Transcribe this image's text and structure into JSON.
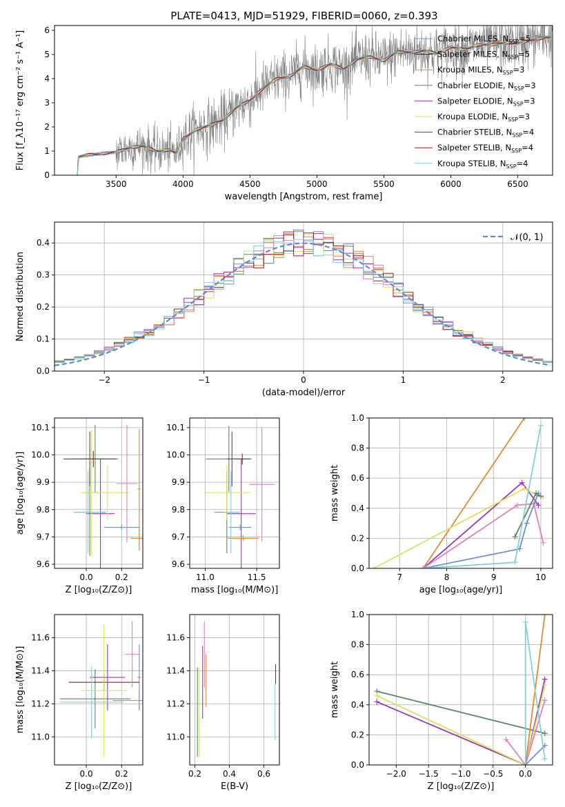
{
  "figure": {
    "title": "PLATE=0413, MJD=51929, FIBERID=0060, z=0.393"
  },
  "legend_entries": [
    {
      "name": "Chabrier MILES",
      "nssp": "5",
      "color": "#6c8fd8"
    },
    {
      "name": "Salpeter MILES",
      "nssp": "5",
      "color": "#1f1f1f"
    },
    {
      "name": "Kroupa MILES",
      "nssp": "3",
      "color": "#e08a2e"
    },
    {
      "name": "Chabrier ELODIE",
      "nssp": "3",
      "color": "#5b8466"
    },
    {
      "name": "Salpeter ELODIE",
      "nssp": "3",
      "color": "#9b34b0"
    },
    {
      "name": "Kroupa ELODIE",
      "nssp": "3",
      "color": "#dbe05a"
    },
    {
      "name": "Chabrier STELIB",
      "nssp": "4",
      "color": "#4a4a4a"
    },
    {
      "name": "Salpeter STELIB",
      "nssp": "4",
      "color": "#a01818"
    },
    {
      "name": "Kroupa STELIB",
      "nssp": "4",
      "color": "#7fd1d6"
    }
  ],
  "chart_data": [
    {
      "id": "spectrum",
      "type": "line",
      "xlabel": "wavelength [Angstrom, rest frame]",
      "ylabel": "Flux [f_λ10⁻¹⁷ erg cm⁻² s⁻¹ A⁻¹]",
      "xlim": [
        3040,
        6760
      ],
      "ylim": [
        0,
        6.2
      ],
      "xticks": [
        3500,
        4000,
        4500,
        5000,
        5500,
        6000,
        6500
      ],
      "yticks": [
        0,
        1,
        2,
        3,
        4,
        5,
        6
      ],
      "grid": false,
      "legend": "top-right",
      "continuum": [
        [
          3210,
          0.0
        ],
        [
          3215,
          0.75
        ],
        [
          3300,
          0.85
        ],
        [
          3400,
          0.9
        ],
        [
          3500,
          0.95
        ],
        [
          3600,
          1.15
        ],
        [
          3700,
          1.2
        ],
        [
          3800,
          1.0
        ],
        [
          3900,
          1.05
        ],
        [
          3950,
          0.9
        ],
        [
          4000,
          1.5
        ],
        [
          4100,
          1.9
        ],
        [
          4200,
          2.05
        ],
        [
          4300,
          2.3
        ],
        [
          4400,
          2.8
        ],
        [
          4500,
          3.1
        ],
        [
          4600,
          3.6
        ],
        [
          4700,
          4.0
        ],
        [
          4800,
          4.1
        ],
        [
          4900,
          4.5
        ],
        [
          5000,
          4.35
        ],
        [
          5100,
          4.6
        ],
        [
          5200,
          4.4
        ],
        [
          5300,
          4.8
        ],
        [
          5400,
          4.9
        ],
        [
          5500,
          4.75
        ],
        [
          5600,
          5.1
        ],
        [
          5700,
          5.1
        ],
        [
          5800,
          5.15
        ],
        [
          5900,
          5.05
        ],
        [
          6000,
          5.3
        ],
        [
          6100,
          5.2
        ],
        [
          6200,
          5.4
        ],
        [
          6300,
          5.4
        ],
        [
          6400,
          5.5
        ],
        [
          6500,
          5.45
        ],
        [
          6600,
          5.6
        ],
        [
          6700,
          5.7
        ]
      ],
      "data_color": "#808080"
    },
    {
      "id": "residuals",
      "type": "line",
      "xlabel": "(data-model)/error",
      "ylabel": "Normed distribution",
      "xlim": [
        -2.5,
        2.5
      ],
      "ylim": [
        0,
        0.465
      ],
      "xticks": [
        -2,
        -1,
        0,
        1,
        2
      ],
      "yticks": [
        0.0,
        0.1,
        0.2,
        0.3,
        0.4
      ],
      "grid": true,
      "legend": "top-right",
      "legend_label": "𝒩(0, 1)",
      "gaussian": {
        "mean": 0,
        "sigma": 1,
        "color": "#5b88d8"
      },
      "hist_bin_width": 0.1,
      "hist_colors": [
        "#6c8fd8",
        "#e08a2e",
        "#5b8466",
        "#9b34b0",
        "#dbe05a",
        "#e07fb8",
        "#a01818",
        "#7fd1d6"
      ]
    },
    {
      "id": "age-vs-Z",
      "type": "scatter",
      "xlabel": "Z [log₁₀(Z/Z⊙)]",
      "ylabel": "age  [log₁₀(age/yr)]",
      "xlim": [
        -0.18,
        0.32
      ],
      "ylim": [
        9.585,
        10.135
      ],
      "xticks": [
        0.0,
        0.2
      ],
      "yticks": [
        9.6,
        9.7,
        9.8,
        9.9,
        10.0,
        10.1
      ],
      "grid": true,
      "points": [
        {
          "x": 0.05,
          "y": 9.985,
          "xerr": 0.13,
          "yerr": 0.125,
          "color": "#5b8466"
        },
        {
          "x": 0.04,
          "y": 9.985,
          "xerr": 0.07,
          "yerr": 0.03,
          "color": "#a01818"
        },
        {
          "x": 0.02,
          "y": 9.79,
          "xerr": 0.09,
          "yerr": 0.16,
          "color": "#5b8466"
        },
        {
          "x": 0.08,
          "y": 9.785,
          "xerr": 0.08,
          "yerr": 0.2,
          "color": "#9b34b0"
        },
        {
          "x": 0.12,
          "y": 9.862,
          "xerr": 0.12,
          "yerr": 0.1,
          "color": "#dbe05a"
        },
        {
          "x": 0.03,
          "y": 9.862,
          "xerr": 0.06,
          "yerr": 0.23,
          "color": "#dbe05a"
        },
        {
          "x": 0.23,
          "y": 9.895,
          "xerr": 0.06,
          "yerr": 0.215,
          "color": "#e07fb8"
        },
        {
          "x": 0.3,
          "y": 9.695,
          "xerr": 0.05,
          "yerr": 0.045,
          "color": "#e08a2e"
        },
        {
          "x": 0.3,
          "y": 9.875,
          "xerr": 0.01,
          "yerr": 0.22,
          "color": "#e08a2e"
        },
        {
          "x": 0.2,
          "y": 9.735,
          "xerr": 0.1,
          "yerr": 0.01,
          "color": "#6c8fd8"
        },
        {
          "x": 0.01,
          "y": 9.79,
          "xerr": 0.08,
          "yerr": 0.15,
          "color": "#7fd1d6"
        },
        {
          "x": 0.02,
          "y": 9.985,
          "xerr": 0.15,
          "yerr": 0.1,
          "color": "#4a4a4a"
        }
      ]
    },
    {
      "id": "age-vs-mass",
      "type": "scatter",
      "xlabel": "mass [log₁₀(M/M⊙)]",
      "ylabel": "",
      "xlim": [
        10.85,
        11.72
      ],
      "ylim": [
        9.585,
        10.135
      ],
      "xticks": [
        11.0,
        11.5
      ],
      "yticks": [
        9.6,
        9.7,
        9.8,
        9.9,
        10.0,
        10.1
      ],
      "grid": true,
      "points": [
        {
          "x": 11.23,
          "y": 9.985,
          "xerr": 0.22,
          "yerr": 0.12,
          "color": "#5b8466"
        },
        {
          "x": 11.36,
          "y": 9.985,
          "xerr": 0.08,
          "yerr": 0.02,
          "color": "#a01818"
        },
        {
          "x": 11.21,
          "y": 9.79,
          "xerr": 0.12,
          "yerr": 0.15,
          "color": "#5b8466"
        },
        {
          "x": 11.35,
          "y": 9.785,
          "xerr": 0.14,
          "yerr": 0.2,
          "color": "#9b34b0"
        },
        {
          "x": 11.21,
          "y": 9.862,
          "xerr": 0.22,
          "yerr": 0.1,
          "color": "#dbe05a"
        },
        {
          "x": 11.55,
          "y": 9.892,
          "xerr": 0.12,
          "yerr": 0.21,
          "color": "#e07fb8"
        },
        {
          "x": 11.37,
          "y": 9.695,
          "xerr": 0.15,
          "yerr": 0.01,
          "color": "#e08a2e"
        },
        {
          "x": 11.34,
          "y": 9.735,
          "xerr": 0.11,
          "yerr": 0.01,
          "color": "#6c8fd8"
        },
        {
          "x": 11.25,
          "y": 9.79,
          "xerr": 0.07,
          "yerr": 0.15,
          "color": "#7fd1d6"
        },
        {
          "x": 11.26,
          "y": 9.985,
          "xerr": 0.05,
          "yerr": 0.1,
          "color": "#4a4a4a"
        }
      ]
    },
    {
      "id": "weight-vs-age",
      "type": "line",
      "xlabel": "age  [log₁₀(age/yr)]",
      "ylabel": "mass weight",
      "xlim": [
        6.35,
        10.25
      ],
      "ylim": [
        0,
        1
      ],
      "xticks": [
        7,
        8,
        9,
        10
      ],
      "yticks": [
        0.0,
        0.2,
        0.4,
        0.6,
        0.8,
        1.0
      ],
      "grid": true,
      "series": [
        {
          "color": "#e08a2e",
          "points": [
            [
              7.5,
              0.0
            ],
            [
              9.65,
              1.0
            ]
          ]
        },
        {
          "color": "#9b34b0",
          "points": [
            [
              7.5,
              0.0
            ],
            [
              9.6,
              0.57
            ],
            [
              9.95,
              0.42
            ]
          ]
        },
        {
          "color": "#dbe05a",
          "points": [
            [
              6.45,
              0.0
            ],
            [
              9.65,
              0.53
            ],
            [
              10.05,
              0.47
            ]
          ]
        },
        {
          "color": "#e07fb8",
          "points": [
            [
              7.5,
              0.0
            ],
            [
              9.5,
              0.42
            ],
            [
              9.85,
              0.43
            ],
            [
              10.05,
              0.17
            ]
          ]
        },
        {
          "color": "#6c8fd8",
          "points": [
            [
              7.5,
              0.0
            ],
            [
              9.55,
              0.13
            ],
            [
              9.7,
              0.3
            ],
            [
              9.95,
              0.5
            ]
          ]
        },
        {
          "color": "#5b8466",
          "points": [
            [
              9.45,
              0.21
            ],
            [
              9.9,
              0.5
            ],
            [
              10.0,
              0.48
            ]
          ]
        },
        {
          "color": "#7fd1d6",
          "points": [
            [
              7.5,
              0.0
            ],
            [
              9.45,
              0.04
            ],
            [
              10.0,
              0.95
            ]
          ]
        }
      ]
    },
    {
      "id": "mass-vs-Z",
      "type": "scatter",
      "xlabel": "Z [log₁₀(Z/Z⊙)]",
      "ylabel": "mass [log₁₀(M/M⊙)]",
      "xlim": [
        -0.18,
        0.32
      ],
      "ylim": [
        10.83,
        11.74
      ],
      "xticks": [
        0.0,
        0.2
      ],
      "yticks": [
        11.0,
        11.2,
        11.4,
        11.6
      ],
      "grid": true,
      "points": [
        {
          "x": 0.05,
          "y": 11.23,
          "xerr": 0.2,
          "yerr": 0.18,
          "color": "#5b8466"
        },
        {
          "x": 0.1,
          "y": 11.33,
          "xerr": 0.2,
          "yerr": 0.05,
          "color": "#a01818"
        },
        {
          "x": 0.12,
          "y": 11.36,
          "xerr": 0.1,
          "yerr": 0.2,
          "color": "#9b34b0"
        },
        {
          "x": 0.1,
          "y": 11.28,
          "xerr": 0.13,
          "yerr": 0.4,
          "color": "#dbe05a"
        },
        {
          "x": 0.26,
          "y": 11.5,
          "xerr": 0.04,
          "yerr": 0.2,
          "color": "#e07fb8"
        },
        {
          "x": 0.3,
          "y": 11.22,
          "xerr": 0.15,
          "yerr": 0.05,
          "color": "#e08a2e"
        },
        {
          "x": 0.3,
          "y": 11.36,
          "xerr": 0.01,
          "yerr": 0.2,
          "color": "#6c8fd8"
        },
        {
          "x": 0.03,
          "y": 11.21,
          "xerr": 0.18,
          "yerr": 0.22,
          "color": "#7fd1d6"
        }
      ]
    },
    {
      "id": "mass-vs-EBV",
      "type": "scatter",
      "xlabel": "E(B-V)",
      "ylabel": "",
      "xlim": [
        0.17,
        0.69
      ],
      "ylim": [
        10.83,
        11.74
      ],
      "xticks": [
        0.2,
        0.4,
        0.6
      ],
      "yticks": [
        11.0,
        11.2,
        11.4,
        11.6
      ],
      "grid": true,
      "points": [
        {
          "x": 0.215,
          "y": 11.15,
          "xerr": 0.0,
          "yerr": 0.27,
          "color": "#5b8466"
        },
        {
          "x": 0.225,
          "y": 11.15,
          "xerr": 0.0,
          "yerr": 0.27,
          "color": "#dbe05a"
        },
        {
          "x": 0.245,
          "y": 11.33,
          "xerr": 0.0,
          "yerr": 0.22,
          "color": "#9b34b0"
        },
        {
          "x": 0.255,
          "y": 11.5,
          "xerr": 0.0,
          "yerr": 0.2,
          "color": "#e07fb8"
        },
        {
          "x": 0.265,
          "y": 11.34,
          "xerr": 0.0,
          "yerr": 0.16,
          "color": "#e08a2e"
        },
        {
          "x": 0.665,
          "y": 11.15,
          "xerr": 0.0,
          "yerr": 0.17,
          "color": "#7fd1d6"
        },
        {
          "x": 0.668,
          "y": 11.38,
          "xerr": 0.0,
          "yerr": 0.06,
          "color": "#a01818"
        }
      ]
    },
    {
      "id": "weight-vs-Z",
      "type": "line",
      "xlabel": "Z [log₁₀(Z/Z⊙)]",
      "ylabel": "mass weight",
      "xlim": [
        -2.42,
        0.42
      ],
      "ylim": [
        0,
        1
      ],
      "xticks": [
        -2.0,
        -1.5,
        -1.0,
        -0.5,
        0.0
      ],
      "yticks": [
        0.0,
        0.2,
        0.4,
        0.6,
        0.8,
        1.0
      ],
      "grid": true,
      "series": [
        {
          "color": "#5b8466",
          "points": [
            [
              -2.3,
              0.49
            ],
            [
              0.3,
              0.21
            ]
          ]
        },
        {
          "color": "#9b34b0",
          "points": [
            [
              -2.3,
              0.42
            ],
            [
              0.0,
              0.0
            ],
            [
              0.3,
              0.57
            ]
          ]
        },
        {
          "color": "#dbe05a",
          "points": [
            [
              -2.3,
              0.46
            ],
            [
              0.0,
              0.0
            ],
            [
              0.3,
              0.53
            ]
          ]
        },
        {
          "color": "#e07fb8",
          "points": [
            [
              -0.3,
              0.17
            ],
            [
              0.0,
              0.0
            ],
            [
              0.3,
              0.43
            ]
          ]
        },
        {
          "color": "#e08a2e",
          "points": [
            [
              0.0,
              0.0
            ],
            [
              0.3,
              1.0
            ]
          ]
        },
        {
          "color": "#6c8fd8",
          "points": [
            [
              0.0,
              0.0
            ],
            [
              0.3,
              0.13
            ]
          ]
        },
        {
          "color": "#7fd1d6",
          "points": [
            [
              0.0,
              0.0
            ],
            [
              0.0,
              0.95
            ],
            [
              0.3,
              0.04
            ]
          ]
        }
      ]
    }
  ]
}
